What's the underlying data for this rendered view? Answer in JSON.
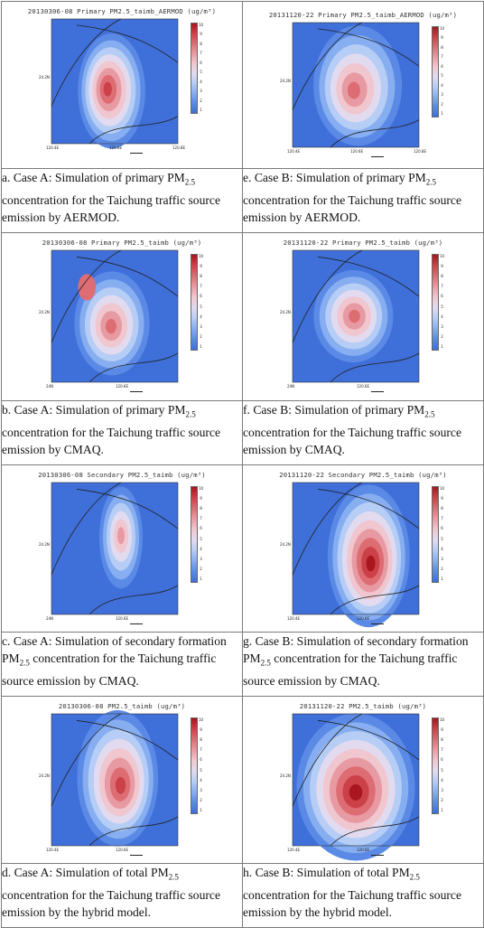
{
  "panels": [
    {
      "id": "a",
      "title": "20130306-08 Primary PM2.5_taimb_AERMOD (ug/m³)",
      "caption": "a. Case A: Simulation of primary PM2.5 concentration for the Taichung traffic source emission by AERMOD.",
      "lat_label": "24.2N",
      "lon_labels": [
        "120.4E",
        "120.6E",
        "120.8E"
      ],
      "colorbar": [
        "10",
        "9",
        "8",
        "7",
        "6",
        "5",
        "4",
        "3",
        "2",
        "1"
      ]
    },
    {
      "id": "e",
      "title": "20131120-22 Primary PM2.5_taimb_AERMOD (ug/m³)",
      "caption": "e. Case B: Simulation of primary PM2.5 concentration for the Taichung traffic source emission by AERMOD.",
      "lat_label": "24.2N",
      "lon_labels": [
        "120.4E",
        "120.6E",
        "120.8E"
      ],
      "colorbar": [
        "10",
        "9",
        "8",
        "7",
        "6",
        "5",
        "4",
        "3",
        "2",
        "1"
      ]
    },
    {
      "id": "b",
      "title": "20130306-08 Primary PM2.5_taimb (ug/m³)",
      "caption": "b. Case A: Simulation of primary PM2.5 concentration for the Taichung traffic source emission by CMAQ.",
      "lat_label": "24.2N",
      "lon_labels": [
        "24N",
        "120.6E"
      ],
      "colorbar": [
        "10",
        "9",
        "8",
        "7",
        "6",
        "5",
        "4",
        "3",
        "2",
        "1"
      ]
    },
    {
      "id": "f",
      "title": "20131120-22 Primary PM2.5_taimb (ug/m³)",
      "caption": "f. Case B: Simulation of primary PM2.5 concentration for the Taichung traffic source emission by CMAQ.",
      "lat_label": "24.2N",
      "lon_labels": [
        "24N",
        "120.6E"
      ],
      "colorbar": [
        "10",
        "9",
        "8",
        "7",
        "6",
        "5",
        "4",
        "3",
        "2",
        "1"
      ]
    },
    {
      "id": "c",
      "title": "20130306-08 Secondary PM2.5_taimb (ug/m³)",
      "caption": "c. Case A: Simulation of secondary formation PM2.5 concentration for the Taichung traffic source emission by CMAQ.",
      "lat_label": "24.2N",
      "lon_labels": [
        "24N",
        "120.6E"
      ],
      "colorbar": [
        "10",
        "9",
        "8",
        "7",
        "6",
        "5",
        "4",
        "3",
        "2",
        "1"
      ]
    },
    {
      "id": "g",
      "title": "20131120-22 Secondary PM2.5_taimb (ug/m³)",
      "caption": "g. Case B: Simulation of secondary formation PM2.5 concentration for the Taichung traffic source emission by CMAQ.",
      "lat_label": "24.2N",
      "lon_labels": [
        "120.4E",
        "120.6E"
      ],
      "colorbar": [
        "10",
        "9",
        "8",
        "7",
        "6",
        "5",
        "4",
        "3",
        "2",
        "1"
      ]
    },
    {
      "id": "d",
      "title": "20130306-08 PM2.5_taimb (ug/m³)",
      "caption": "d. Case A: Simulation of total PM2.5 concentration for the Taichung traffic source emission by the hybrid model.",
      "lat_label": "24.2N",
      "lon_labels": [
        "120.4E",
        "120.6E"
      ],
      "colorbar": [
        "10",
        "9",
        "8",
        "7",
        "6",
        "5",
        "4",
        "3",
        "2",
        "1"
      ]
    },
    {
      "id": "h",
      "title": "20131120-22 PM2.5_taimb (ug/m³)",
      "caption": "h. Case B: Simulation of total PM2.5 concentration for the Taichung traffic source emission by the hybrid model.",
      "lat_label": "24.2N",
      "lon_labels": [
        "120.4E",
        "120.6E"
      ],
      "colorbar": [
        "10",
        "9",
        "8",
        "7",
        "6",
        "5",
        "4",
        "3",
        "2",
        "1"
      ]
    }
  ]
}
